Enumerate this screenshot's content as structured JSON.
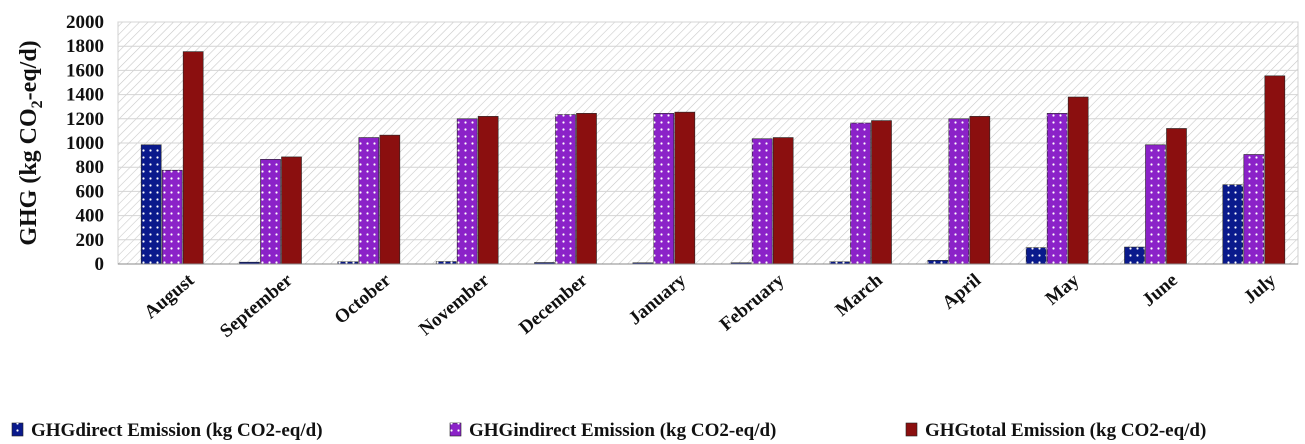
{
  "chart_data": {
    "type": "bar",
    "title": "",
    "xlabel": "",
    "ylabel": {
      "prefix": "GHG (kg CO",
      "subscript": "2",
      "suffix": "-eq/d)"
    },
    "ylim": [
      0,
      2000
    ],
    "yticks": [
      0,
      200,
      400,
      600,
      800,
      1000,
      1200,
      1400,
      1600,
      1800,
      2000
    ],
    "ytick_labels": [
      "0",
      "200",
      "400",
      "600",
      "800",
      "1000",
      "1200",
      "1400",
      "1600",
      "1800",
      "2000"
    ],
    "grid": true,
    "legend_position": "bottom",
    "categories": [
      "August",
      "September",
      "October",
      "November",
      "December",
      "January",
      "February",
      "March",
      "April",
      "May",
      "June",
      "July"
    ],
    "series": [
      {
        "name": "GHGdirect Emission (kg CO2-eq/d)",
        "color": "#0a1a8c",
        "values": [
          985,
          15,
          18,
          20,
          12,
          10,
          10,
          18,
          30,
          135,
          140,
          655
        ]
      },
      {
        "name": "GHGindirect Emission (kg CO2-eq/d)",
        "color": "#8b22c8",
        "values": [
          775,
          865,
          1045,
          1200,
          1235,
          1245,
          1035,
          1165,
          1200,
          1245,
          985,
          905
        ]
      },
      {
        "name": "GHGtotal  Emission (kg CO2-eq/d)",
        "color": "#8b0f0f",
        "values": [
          1755,
          885,
          1065,
          1220,
          1245,
          1255,
          1045,
          1185,
          1220,
          1380,
          1120,
          1555
        ]
      }
    ]
  }
}
